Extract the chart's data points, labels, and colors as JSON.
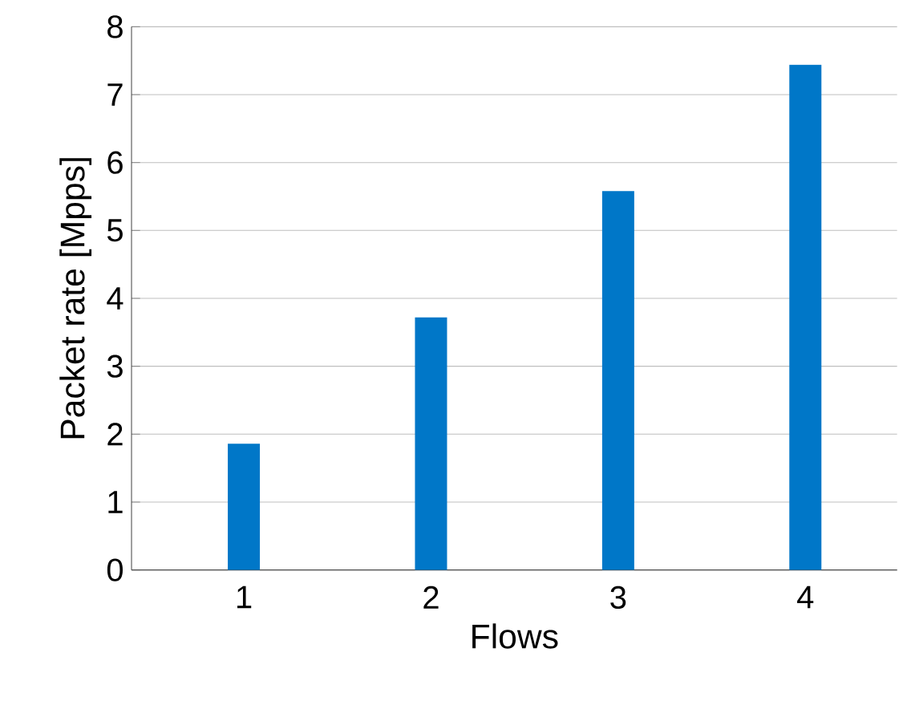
{
  "chart_data": {
    "type": "bar",
    "xlabel": "Flows",
    "ylabel": "Packet rate [Mpps]",
    "categories": [
      "1",
      "2",
      "3",
      "4"
    ],
    "values": [
      1.86,
      3.72,
      5.58,
      7.44
    ],
    "color": "#0077c8",
    "ylim": [
      0,
      8
    ],
    "yticks": [
      0,
      1,
      2,
      3,
      4,
      5,
      6,
      7,
      8
    ],
    "grid": "y"
  }
}
